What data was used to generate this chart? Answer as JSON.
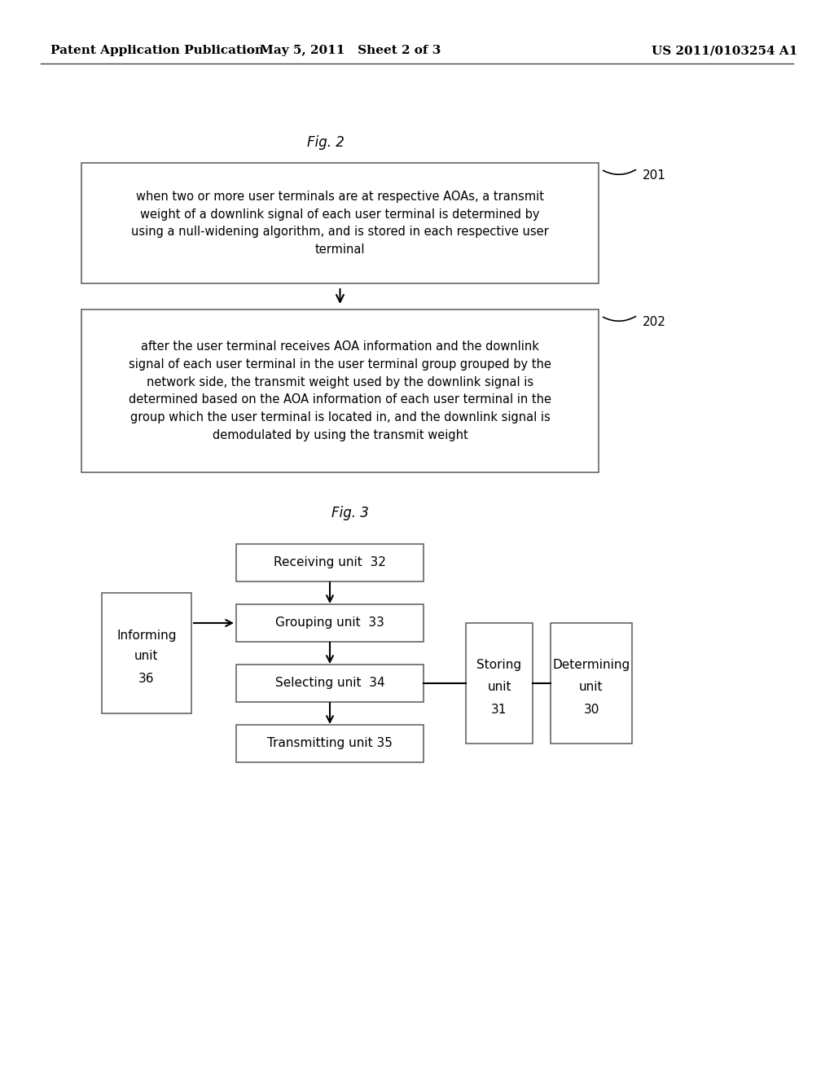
{
  "bg_color": "#ffffff",
  "header_left": "Patent Application Publication",
  "header_mid": "May 5, 2011   Sheet 2 of 3",
  "header_right": "US 2011/0103254 A1",
  "fig2_label": "Fig. 2",
  "fig3_label": "Fig. 3",
  "box201_text": "when two or more user terminals are at respective AOAs, a transmit\nweight of a downlink signal of each user terminal is determined by\nusing a null-widening algorithm, and is stored in each respective user\nterminal",
  "box201_label": "201",
  "box202_text": "after the user terminal receives AOA information and the downlink\nsignal of each user terminal in the user terminal group grouped by the\nnetwork side, the transmit weight used by the downlink signal is\ndetermined based on the AOA information of each user terminal in the\ngroup which the user terminal is located in, and the downlink signal is\ndemodulated by using the transmit weight",
  "box202_label": "202",
  "box_receiving": "Receiving unit  32",
  "box_grouping": "Grouping unit  33",
  "box_selecting": "Selecting unit  34",
  "box_transmitting": "Transmitting unit 35",
  "box_informing_line1": "Informing",
  "box_informing_line2": "unit",
  "box_informing_line3": "36",
  "box_storing_line1": "Storing",
  "box_storing_line2": "unit",
  "box_storing_line3": "31",
  "box_determining_line1": "Determining",
  "box_determining_line2": "unit",
  "box_determining_line3": "30",
  "text_color": "#000000",
  "box_edge_color": "#666666",
  "line_color": "#000000"
}
